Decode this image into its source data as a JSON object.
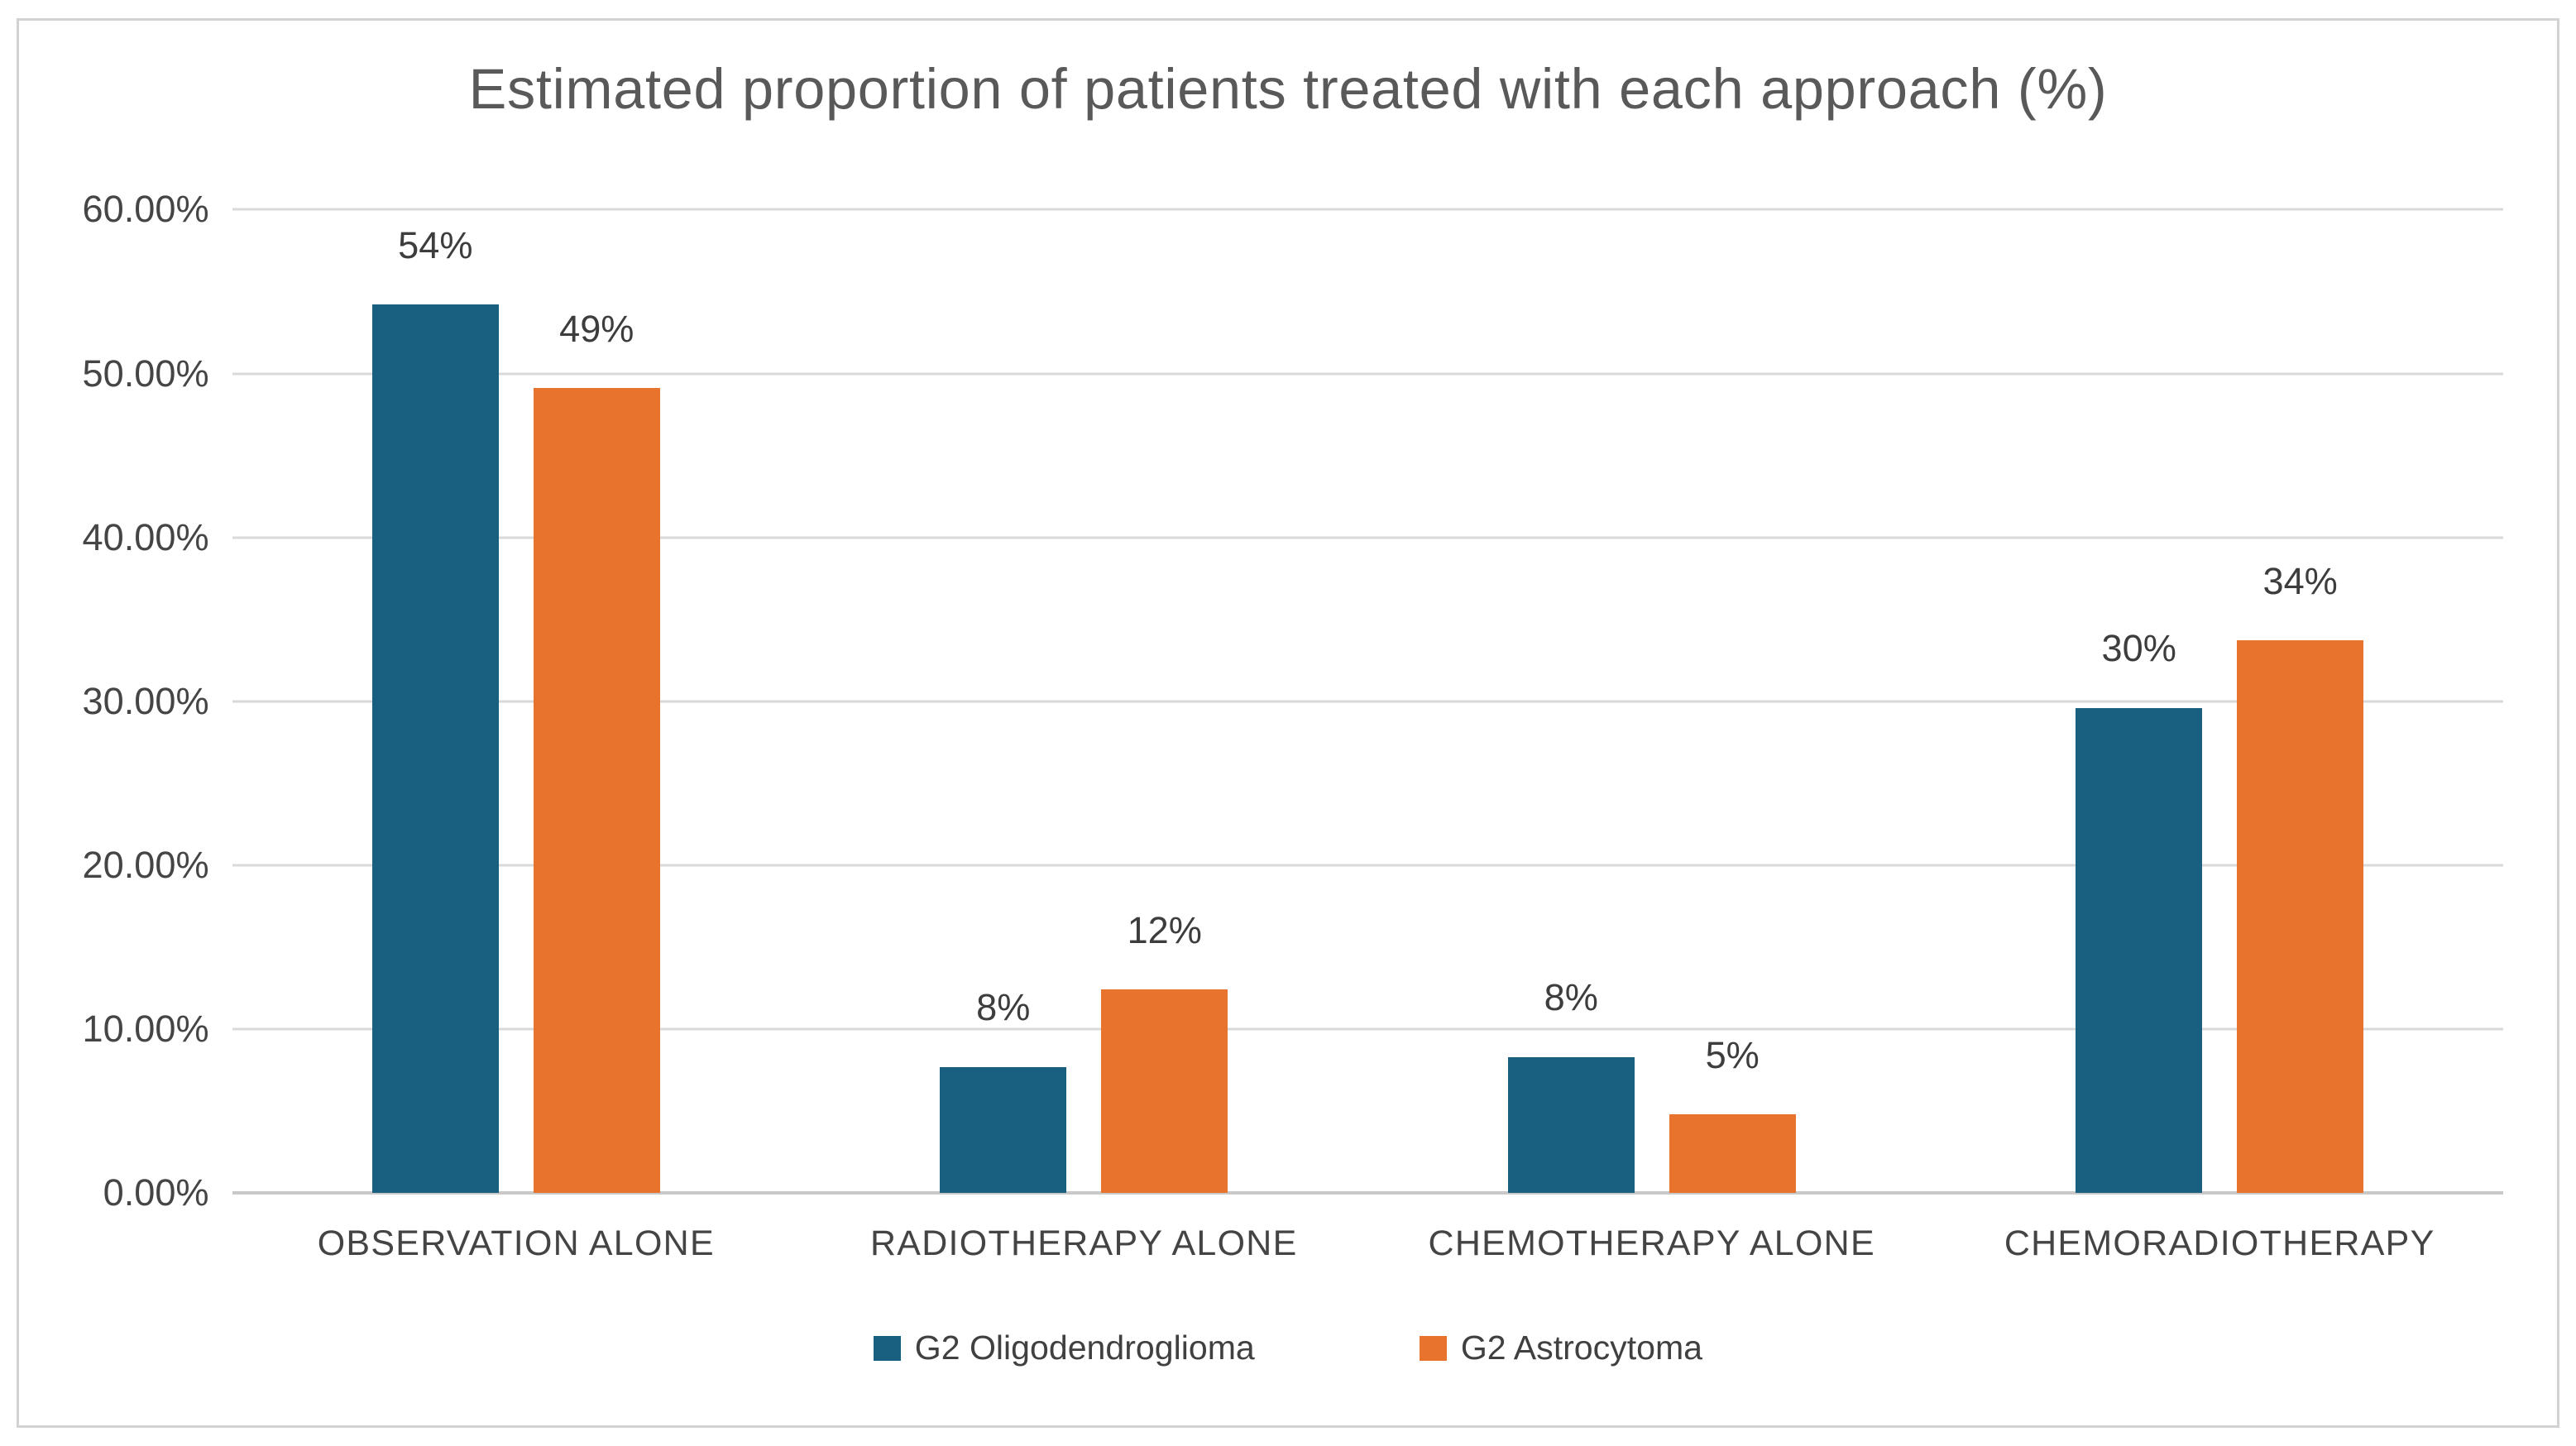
{
  "chart_data": {
    "type": "bar",
    "title": "Estimated proportion of patients treated with each approach (%)",
    "categories": [
      "OBSERVATION ALONE",
      "RADIOTHERAPY ALONE",
      "CHEMOTHERAPY ALONE",
      "CHEMORADIOTHERAPY"
    ],
    "series": [
      {
        "name": "G2 Oligodendroglioma",
        "color": "#195F7F",
        "values": [
          54.2,
          7.7,
          8.3,
          29.6
        ],
        "labels": [
          "54%",
          "8%",
          "8%",
          "30%"
        ]
      },
      {
        "name": "G2 Astrocytoma",
        "color": "#E8732C",
        "values": [
          49.1,
          12.4,
          4.8,
          33.7
        ],
        "labels": [
          "49%",
          "12%",
          "5%",
          "34%"
        ]
      }
    ],
    "y_axis": {
      "min": 0,
      "max": 60,
      "step": 10,
      "tick_labels": [
        "0.00%",
        "10.00%",
        "20.00%",
        "30.00%",
        "40.00%",
        "50.00%",
        "60.00%"
      ]
    },
    "grid": true,
    "gridline_color": "#d9d9d9",
    "legend_position": "bottom"
  }
}
